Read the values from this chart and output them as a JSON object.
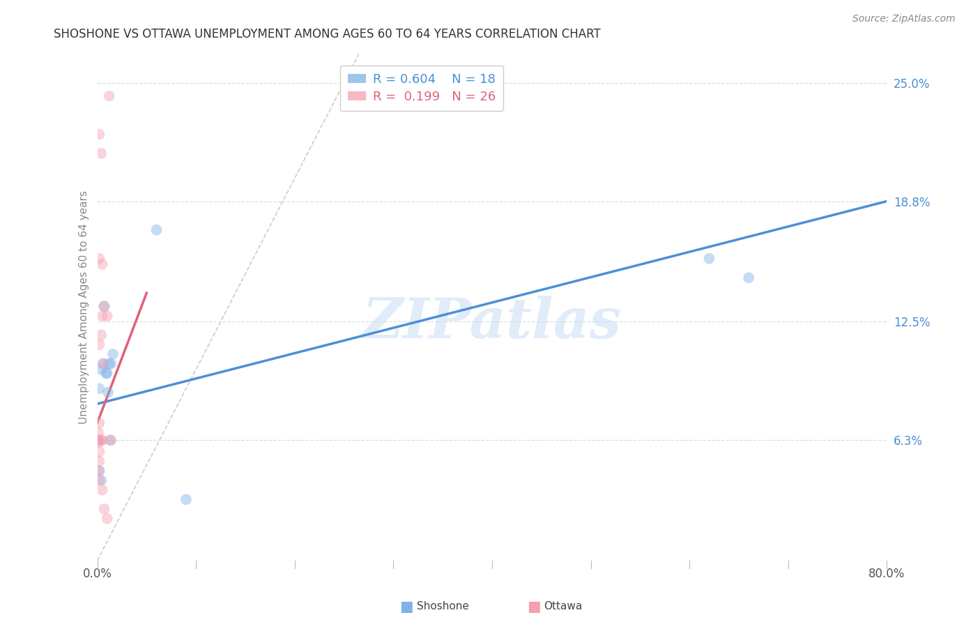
{
  "title": "SHOSHONE VS OTTAWA UNEMPLOYMENT AMONG AGES 60 TO 64 YEARS CORRELATION CHART",
  "source": "Source: ZipAtlas.com",
  "ylabel": "Unemployment Among Ages 60 to 64 years",
  "xlim": [
    0.0,
    0.8
  ],
  "ylim": [
    0.0,
    0.265
  ],
  "ytick_positions": [
    0.063,
    0.125,
    0.188,
    0.25
  ],
  "ytick_labels": [
    "6.3%",
    "12.5%",
    "18.8%",
    "25.0%"
  ],
  "watermark": "ZIPatlas",
  "legend_blue_r": "R = 0.604",
  "legend_blue_n": "N = 18",
  "legend_pink_r": "R =  0.199",
  "legend_pink_n": "N = 26",
  "shoshone_color": "#7EB3E8",
  "ottawa_color": "#F4A0B0",
  "shoshone_x": [
    0.002,
    0.001,
    0.004,
    0.007,
    0.006,
    0.009,
    0.01,
    0.011,
    0.012,
    0.014,
    0.016,
    0.013,
    0.06,
    0.62,
    0.66,
    0.09,
    0.002,
    0.004
  ],
  "shoshone_y": [
    0.09,
    0.063,
    0.1,
    0.133,
    0.103,
    0.098,
    0.098,
    0.088,
    0.103,
    0.103,
    0.108,
    0.063,
    0.173,
    0.158,
    0.148,
    0.032,
    0.047,
    0.042
  ],
  "ottawa_x": [
    0.012,
    0.002,
    0.004,
    0.002,
    0.005,
    0.007,
    0.005,
    0.004,
    0.002,
    0.006,
    0.01,
    0.002,
    0.001,
    0.001,
    0.001,
    0.004,
    0.005,
    0.014,
    0.002,
    0.002,
    0.002,
    0.002,
    0.002,
    0.005,
    0.007,
    0.01
  ],
  "ottawa_y": [
    0.243,
    0.223,
    0.213,
    0.158,
    0.155,
    0.133,
    0.128,
    0.118,
    0.113,
    0.103,
    0.128,
    0.072,
    0.067,
    0.063,
    0.063,
    0.063,
    0.063,
    0.063,
    0.062,
    0.057,
    0.052,
    0.047,
    0.042,
    0.037,
    0.027,
    0.022
  ],
  "blue_line_x": [
    0.0,
    0.8
  ],
  "blue_line_y": [
    0.082,
    0.188
  ],
  "pink_line_x": [
    0.0,
    0.05
  ],
  "pink_line_y": [
    0.072,
    0.14
  ],
  "identity_line_color": "#cccccc",
  "grid_color": "#dddddd",
  "title_color": "#333333",
  "axis_label_color": "#888888",
  "blue_line_color": "#4C8FD5",
  "pink_line_color": "#E0607A",
  "ytick_color": "#4C8FD5",
  "marker_size": 130,
  "marker_alpha": 0.45
}
